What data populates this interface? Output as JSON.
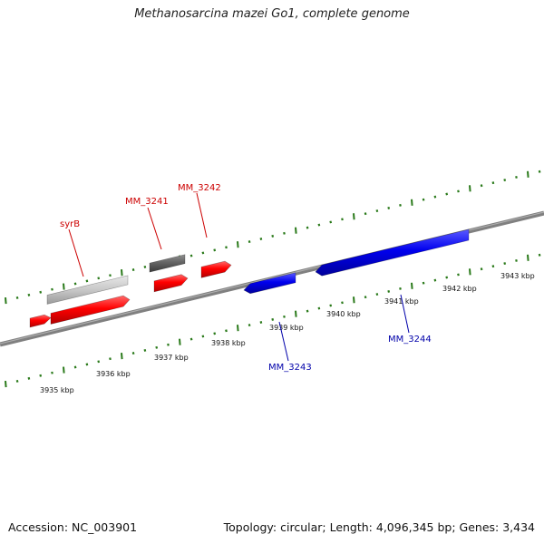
{
  "title": "Methanosarcina mazei Go1, complete genome",
  "footer": {
    "accession": "Accession: NC_003901",
    "stats": "Topology: circular; Length: 4,096,345 bp; Genes: 3,434"
  },
  "colors": {
    "background": "#ffffff",
    "backbone": "#808080",
    "ticks": "#2a7a1a",
    "forward_gene": "#ff0000",
    "reverse_gene": "#0000ee",
    "other_feature_light": "#c8c8c8",
    "other_feature_dark": "#606060",
    "forward_label": "#cc0000",
    "reverse_label": "#0000aa"
  },
  "kbp_labels": [
    "3935 kbp",
    "3936 kbp",
    "3937 kbp",
    "3938 kbp",
    "3939 kbp",
    "3940 kbp",
    "3941 kbp",
    "3942 kbp",
    "3943 kbp"
  ],
  "gene_labels": {
    "forward": [
      "syrB",
      "MM_3241",
      "MM_3242"
    ],
    "reverse": [
      "MM_3243",
      "MM_3244"
    ]
  }
}
